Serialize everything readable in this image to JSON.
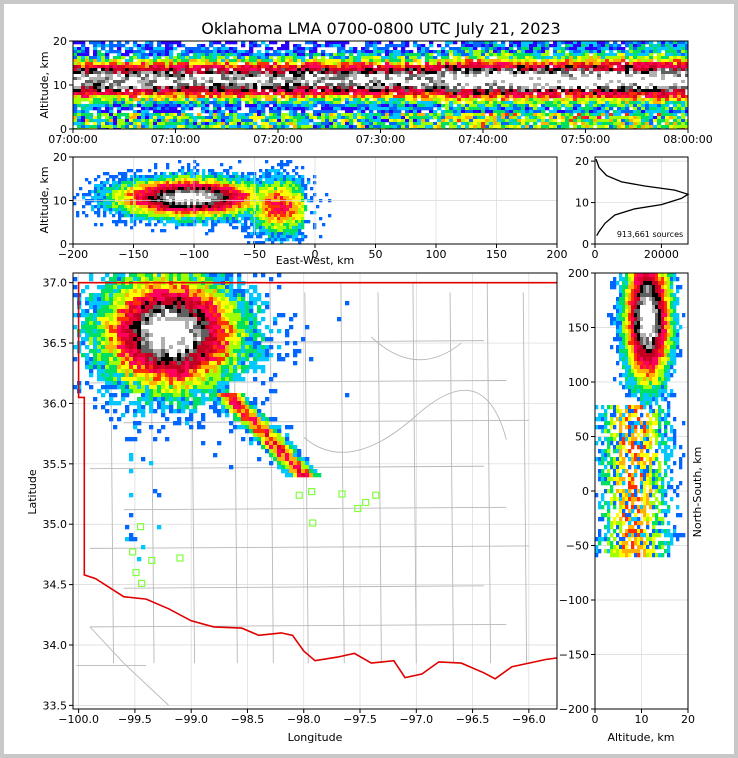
{
  "title": "Oklahoma LMA 0700-0800 UTC July 21, 2023",
  "colors": {
    "density_scale": [
      "#2a00ff",
      "#0066ff",
      "#00c8ff",
      "#00e060",
      "#a0ff00",
      "#ffff00",
      "#ffb000",
      "#ff3000",
      "#ff0060",
      "#e00030",
      "#c00020",
      "#000000",
      "#606060",
      "#b0b0b0",
      "#ffffff"
    ],
    "state_border": "#e00000",
    "county_lines": "#b8b8b8",
    "station_markers": "#80ff40"
  },
  "chart_data": [
    {
      "type": "heatmap",
      "panel": "altitude-time",
      "ylabel": "Altitude, km",
      "ylim": [
        0,
        20
      ],
      "yticks": [
        "0",
        "10",
        "20"
      ],
      "xticks": [
        "07:00:00",
        "07:10:00",
        "07:20:00",
        "07:30:00",
        "07:40:00",
        "07:50:00",
        "08:00:00"
      ],
      "xlim": [
        "07:00:00",
        "08:00:00"
      ]
    },
    {
      "type": "heatmap",
      "panel": "altitude-east-west",
      "xlabel": "East-West, km",
      "ylabel": "Altitude, km",
      "xlim": [
        -200,
        200
      ],
      "ylim": [
        0,
        20
      ],
      "xticks": [
        "−200",
        "−150",
        "−100",
        "−50",
        "0",
        "50",
        "100",
        "150",
        "200"
      ],
      "yticks": [
        "0",
        "10",
        "20"
      ]
    },
    {
      "type": "line",
      "panel": "altitude-histogram",
      "annotation": "913,661 sources",
      "xlim": [
        0,
        28000
      ],
      "ylim": [
        0,
        21
      ],
      "xticks": [
        "0",
        "20000"
      ],
      "yticks": [
        "0",
        "10",
        "20"
      ],
      "x": [
        500,
        1200,
        3000,
        6000,
        12000,
        20000,
        26000,
        28000,
        24000,
        15000,
        8000,
        3500,
        1200,
        300
      ],
      "y": [
        2,
        3,
        5,
        7,
        8.5,
        9.5,
        11,
        12,
        13,
        14,
        15,
        16.5,
        18.5,
        20.5
      ]
    },
    {
      "type": "heatmap",
      "panel": "plan-view",
      "xlabel": "Longitude",
      "ylabel": "Latitude",
      "xlim": [
        -100.05,
        -95.75
      ],
      "ylim": [
        33.47,
        37.08
      ],
      "xticks": [
        "−100.0",
        "−99.5",
        "−99.0",
        "−98.5",
        "−98.0",
        "−97.5",
        "−97.0",
        "−96.5",
        "−96.0"
      ],
      "yticks": [
        "33.5",
        "34.0",
        "34.5",
        "35.0",
        "35.5",
        "36.0",
        "36.5",
        "37.0"
      ],
      "stations": [
        [
          -99.45,
          34.98
        ],
        [
          -99.52,
          34.77
        ],
        [
          -99.49,
          34.6
        ],
        [
          -99.44,
          34.51
        ],
        [
          -99.35,
          34.7
        ],
        [
          -99.1,
          34.72
        ],
        [
          -98.04,
          35.24
        ],
        [
          -97.93,
          35.27
        ],
        [
          -97.92,
          35.01
        ],
        [
          -97.66,
          35.25
        ],
        [
          -97.52,
          35.13
        ],
        [
          -97.45,
          35.18
        ],
        [
          -97.36,
          35.24
        ]
      ]
    },
    {
      "type": "heatmap",
      "panel": "north-south-altitude",
      "xlabel": "Altitude, km",
      "ylabel": "North-South, km",
      "xlim": [
        0,
        20
      ],
      "ylim": [
        -200,
        200
      ],
      "xticks": [
        "0",
        "10",
        "20"
      ],
      "yticks": [
        "−200",
        "−150",
        "−100",
        "−50",
        "0",
        "50",
        "100",
        "150",
        "200"
      ]
    }
  ]
}
